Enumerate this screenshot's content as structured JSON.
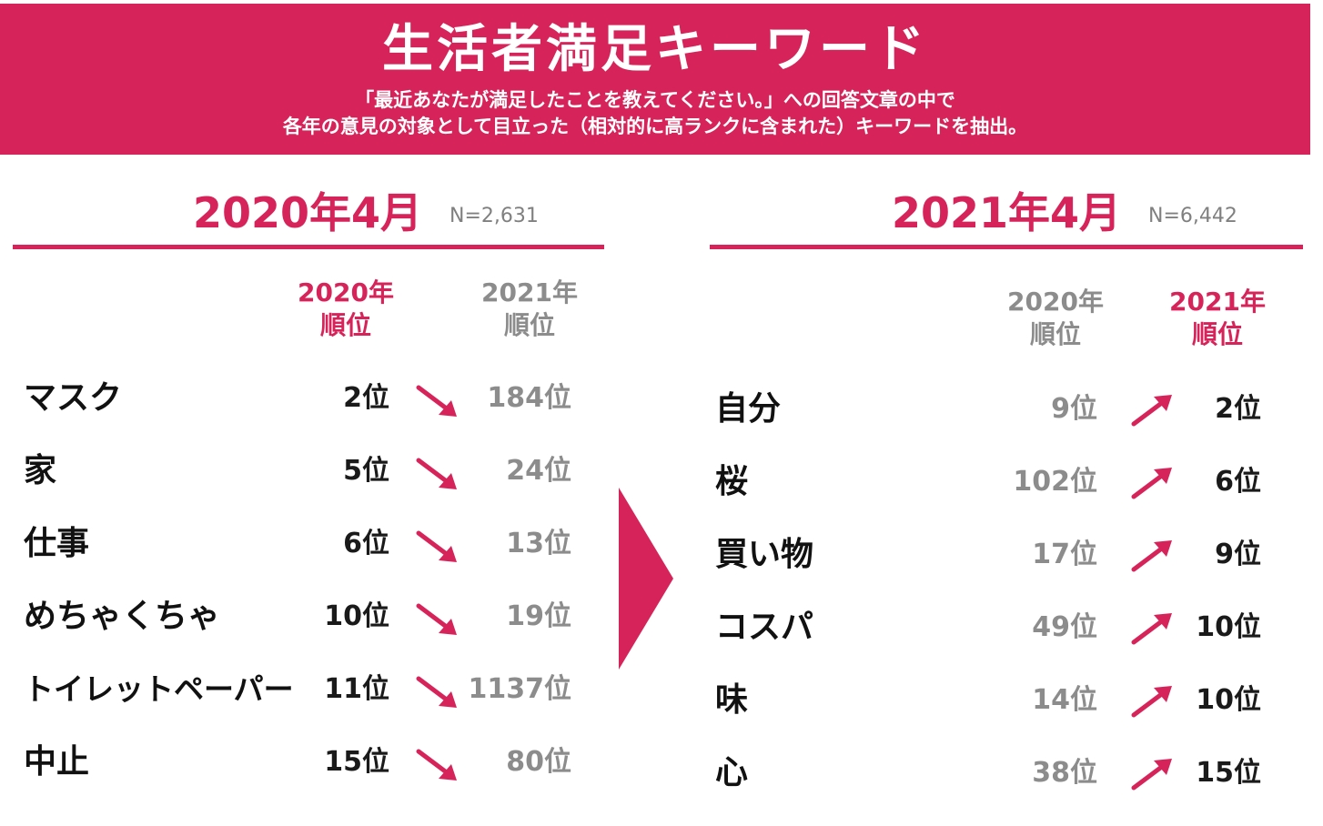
{
  "header": {
    "title": "生活者満足キーワード",
    "description_line1": "「最近あなたが満足したことを教えてください。」への回答文章の中で",
    "description_line2": "各年の意見の対象として目立った（相対的に高ランクに含まれた）キーワードを抽出。"
  },
  "colors": {
    "accent": "#d6245a",
    "muted": "#8c8c8c",
    "text": "#111111"
  },
  "left_panel": {
    "period": "2020年4月",
    "n": "N=2,631",
    "col_2020": "2020年\n順位",
    "col_2021": "2021年\n順位",
    "trend_icon": "arrow-down-right-icon",
    "rows": [
      {
        "keyword": "マスク",
        "rank_2020": "2位",
        "rank_2021": "184位"
      },
      {
        "keyword": "家",
        "rank_2020": "5位",
        "rank_2021": "24位"
      },
      {
        "keyword": "仕事",
        "rank_2020": "6位",
        "rank_2021": "13位"
      },
      {
        "keyword": "めちゃくちゃ",
        "rank_2020": "10位",
        "rank_2021": "19位"
      },
      {
        "keyword": "トイレットペーパー",
        "rank_2020": "11位",
        "rank_2021": "1137位"
      },
      {
        "keyword": "中止",
        "rank_2020": "15位",
        "rank_2021": "80位"
      }
    ]
  },
  "right_panel": {
    "period": "2021年4月",
    "n": "N=6,442",
    "col_2020": "2020年\n順位",
    "col_2021": "2021年\n順位",
    "trend_icon": "arrow-up-right-icon",
    "rows": [
      {
        "keyword": "自分",
        "rank_2020": "9位",
        "rank_2021": "2位"
      },
      {
        "keyword": "桜",
        "rank_2020": "102位",
        "rank_2021": "6位"
      },
      {
        "keyword": "買い物",
        "rank_2020": "17位",
        "rank_2021": "9位"
      },
      {
        "keyword": "コスパ",
        "rank_2020": "49位",
        "rank_2021": "10位"
      },
      {
        "keyword": "味",
        "rank_2020": "14位",
        "rank_2021": "10位"
      },
      {
        "keyword": "心",
        "rank_2020": "38位",
        "rank_2021": "15位"
      }
    ]
  }
}
